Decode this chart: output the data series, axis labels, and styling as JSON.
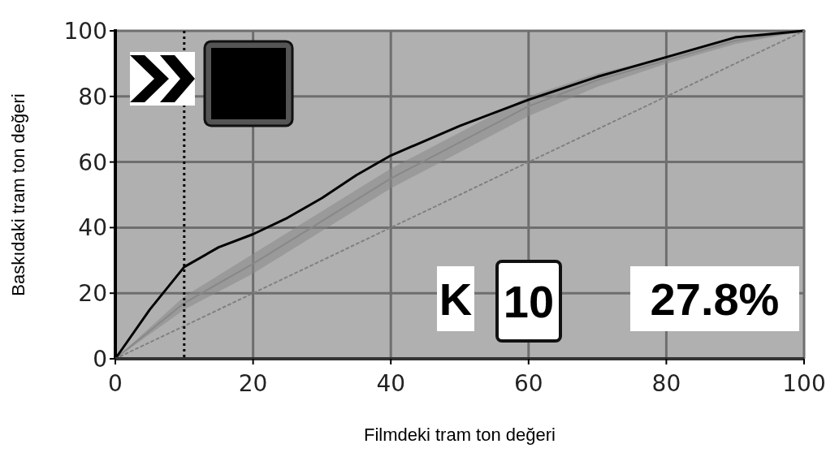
{
  "chart_data": {
    "type": "line",
    "xlabel": "Filmdeki tram ton değeri",
    "ylabel": "Baskıdaki tram ton değeri",
    "xlim": [
      0,
      100
    ],
    "ylim": [
      0,
      100
    ],
    "xticks": [
      0,
      20,
      40,
      60,
      80,
      100
    ],
    "yticks": [
      0,
      20,
      40,
      60,
      80,
      100
    ],
    "grid": true,
    "series": [
      {
        "color": "#888888",
        "x": [
          0,
          10,
          20,
          30,
          40,
          50,
          60,
          70,
          80,
          90,
          100
        ],
        "values": [
          0,
          17,
          29,
          42,
          55,
          66,
          77,
          85,
          91,
          97,
          100
        ],
        "lower": [
          0,
          15,
          26,
          39,
          52,
          63,
          74,
          83,
          90,
          96,
          100
        ],
        "upper": [
          0,
          19,
          32,
          45,
          58,
          69,
          80,
          87,
          92,
          98,
          100
        ]
      },
      {
        "color": "#000000",
        "x": [
          0,
          5,
          10,
          15,
          20,
          25,
          30,
          35,
          40,
          50,
          60,
          70,
          80,
          90,
          100
        ],
        "values": [
          0,
          15,
          28,
          34,
          38,
          43,
          49,
          56,
          62,
          71,
          79,
          86,
          92,
          98,
          100
        ]
      },
      {
        "color": "#808080",
        "line_style": "dotted",
        "x": [
          0,
          100
        ],
        "values": [
          0,
          100
        ]
      }
    ],
    "ref_lines": [
      {
        "axis": "x",
        "value": 10,
        "color": "#000000",
        "line_style": "dotted"
      }
    ],
    "annotations": [
      "K",
      "10",
      "27.8%"
    ]
  }
}
